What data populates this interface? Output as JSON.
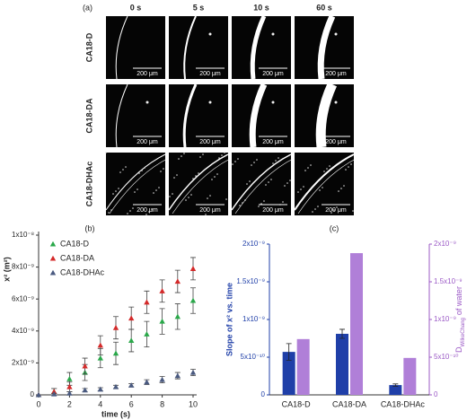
{
  "image_panel": {
    "label": "(a)",
    "columns": [
      "0 s",
      "5 s",
      "10 s",
      "60 s"
    ],
    "rows": [
      "CA18-D",
      "CA18-DA",
      "CA18-DHAc"
    ],
    "scale_bar": "200 μm"
  },
  "chart_data": [
    {
      "type": "scatter",
      "panel_label": "(b)",
      "xlabel": "time (s)",
      "ylabel": "x² (m²)",
      "x": [
        0,
        1,
        2,
        3,
        4,
        5,
        6,
        7,
        8,
        9,
        10
      ],
      "series": [
        {
          "name": "CA18-D",
          "color": "#2aa84a",
          "values": [
            0,
            2e-10,
            1e-09,
            1.4e-09,
            2.3e-09,
            2.6e-09,
            3.4e-09,
            3.8e-09,
            4.6e-09,
            4.9e-09,
            5.9e-09
          ],
          "errors": [
            0,
            2e-10,
            4e-10,
            5e-10,
            6e-10,
            7e-10,
            7e-10,
            8e-10,
            8e-10,
            8e-10,
            8e-10
          ]
        },
        {
          "name": "CA18-DA",
          "color": "#d42a2a",
          "values": [
            0,
            2e-10,
            5e-10,
            1.8e-09,
            3.1e-09,
            4.2e-09,
            4.8e-09,
            5.8e-09,
            6.5e-09,
            7.1e-09,
            7.9e-09
          ],
          "errors": [
            0,
            2e-10,
            3e-10,
            5e-10,
            6e-10,
            7e-10,
            7e-10,
            7e-10,
            7e-10,
            7e-10,
            7e-10
          ]
        },
        {
          "name": "CA18-DHAc",
          "color": "#4a5a80",
          "values": [
            0,
            5e-11,
            1e-10,
            3e-10,
            3.5e-10,
            5e-10,
            6e-10,
            8e-10,
            9.5e-10,
            1.2e-09,
            1.4e-09
          ],
          "errors": [
            0,
            5e-11,
            1e-10,
            1e-10,
            1e-10,
            1e-10,
            1e-10,
            1.5e-10,
            2e-10,
            2e-10,
            2e-10
          ]
        }
      ],
      "xlim": [
        0,
        10
      ],
      "ylim": [
        0,
        1e-08
      ],
      "xticks": [
        0,
        2,
        4,
        6,
        8,
        10
      ],
      "yticks": [
        0,
        {
          "value": 2e-09,
          "label": "2x10⁻⁹"
        },
        {
          "value": 4e-09,
          "label": "4x10⁻⁹"
        },
        {
          "value": 6e-09,
          "label": "6x10⁻⁹"
        },
        {
          "value": 8e-09,
          "label": "8x10⁻⁹"
        },
        {
          "value": 1e-08,
          "label": "1x10⁻⁸"
        }
      ],
      "legend": "upper left"
    },
    {
      "type": "bar",
      "panel_label": "(c)",
      "ylabel": "Slope of x² vs. time",
      "y2label": [
        "D",
        "WilkeChang",
        "of water"
      ],
      "categories": [
        "CA18-D",
        "CA18-DA",
        "CA18-DHAc"
      ],
      "series": [
        {
          "color": "#1f3fa8",
          "values": [
            5.7e-10,
            8.1e-10,
            1.3e-10
          ],
          "errors": [
            1.1e-10,
            6e-11,
            1.5e-11
          ]
        },
        {
          "color": "#b07fd8",
          "axis": "y2",
          "values": [
            7.4e-10,
            1.88e-09,
            4.9e-10
          ]
        }
      ],
      "ylim": [
        0,
        2e-09
      ],
      "y2lim": [
        0,
        2e-09
      ],
      "yticks": [
        0,
        {
          "value": 5e-10,
          "label": "5x10⁻¹⁰"
        },
        {
          "value": 1e-09,
          "label": "1x10⁻⁹"
        },
        {
          "value": 1.5e-09,
          "label": "1.5x10⁻⁹"
        },
        {
          "value": 2e-09,
          "label": "2x10⁻⁹"
        }
      ],
      "y2ticks": [
        0,
        {
          "value": 5e-10,
          "label": "5x10⁻¹⁰"
        },
        {
          "value": 1e-09,
          "label": "1x10⁻⁹"
        },
        {
          "value": 1.5e-09,
          "label": "1.5x10⁻⁹"
        },
        {
          "value": 2e-09,
          "label": "2x10⁻⁹"
        }
      ]
    }
  ]
}
